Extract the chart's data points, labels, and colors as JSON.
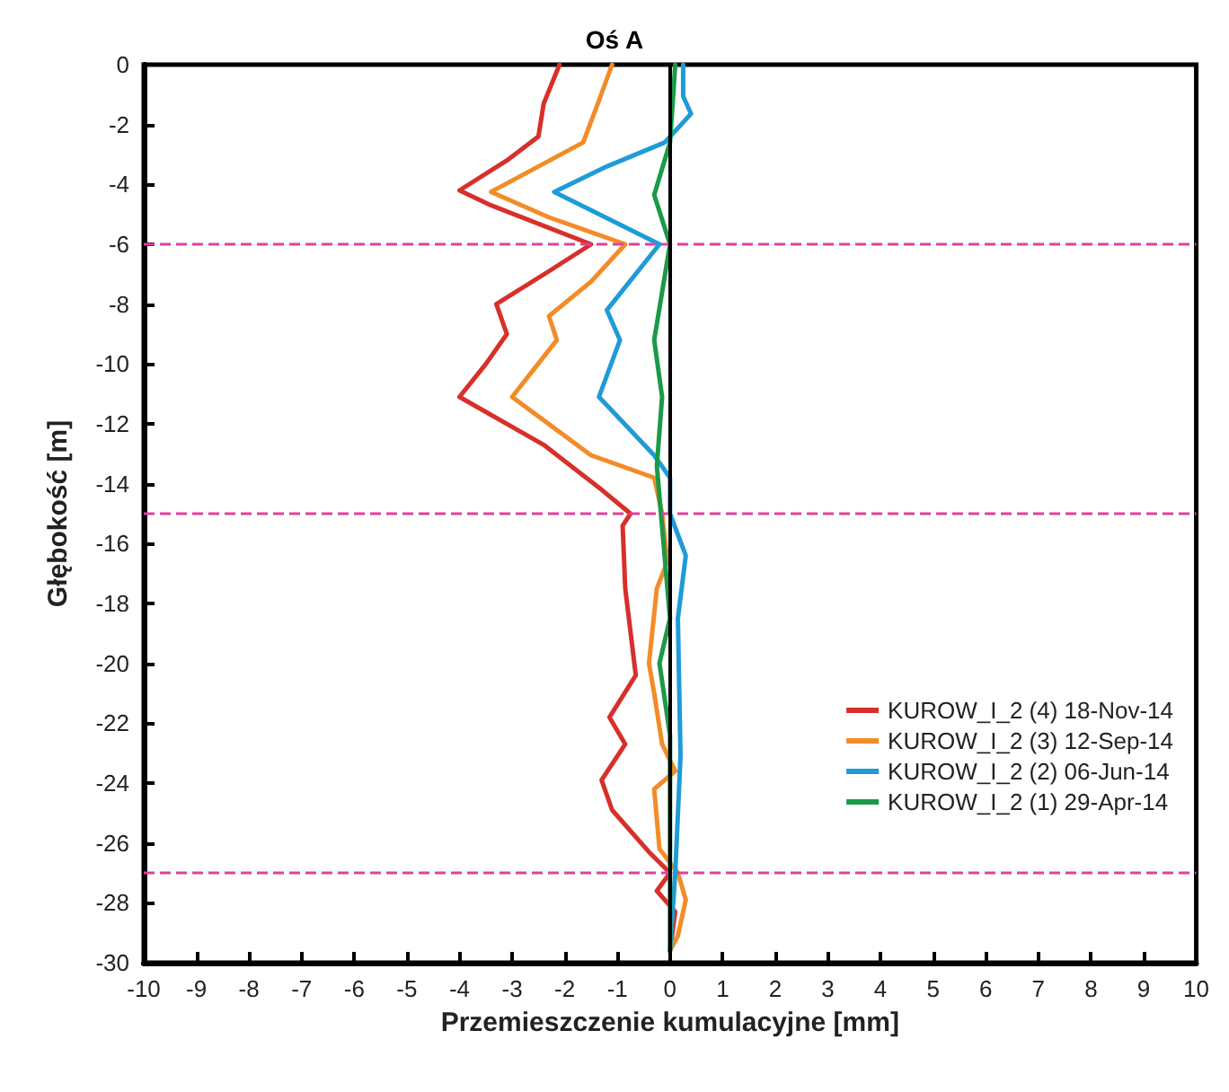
{
  "chart_data": {
    "type": "line",
    "title": "Oś A",
    "xlabel": "Przemieszczenie kumulacyjne [mm]",
    "ylabel": "Głębokość [m]",
    "xlim": [
      -10,
      10
    ],
    "xticks": [
      -10,
      -9,
      -8,
      -7,
      -6,
      -5,
      -4,
      -3,
      -2,
      -1,
      0,
      1,
      2,
      3,
      4,
      5,
      6,
      7,
      8,
      9,
      10
    ],
    "ylim": [
      -30,
      0
    ],
    "yticks": [
      -30,
      -28,
      -26,
      -24,
      -22,
      -20,
      -18,
      -16,
      -14,
      -12,
      -10,
      -8,
      -6,
      -4,
      -2,
      0
    ],
    "grid": false,
    "legend": "bottom right",
    "marker": "none",
    "line_style": "solid",
    "series": [
      {
        "name": "KUROW_I_2 (4) 18-Nov-14",
        "color": "#d7302a",
        "x": [
          -2.1,
          -2.4,
          -2.5,
          -3.1,
          -4.0,
          -3.4,
          -1.5,
          -2.3,
          -3.3,
          -3.1,
          -3.5,
          -4.0,
          -2.4,
          -1.3,
          -0.75,
          -0.9,
          -0.85,
          -0.65,
          -1.15,
          -0.85,
          -1.3,
          -1.1,
          -0.4,
          0,
          -0.25,
          0.1,
          0
        ],
        "values": [
          0,
          -1.3,
          -2.4,
          -3.2,
          -4.2,
          -4.7,
          -6,
          -6.9,
          -8,
          -9,
          -10,
          -11.1,
          -12.7,
          -14.2,
          -15,
          -15.4,
          -17.5,
          -20.4,
          -21.8,
          -22.7,
          -23.9,
          -24.9,
          -26.3,
          -27,
          -27.6,
          -28.3,
          -29.6
        ]
      },
      {
        "name": "KUROW_I_2 (3) 12-Sep-14",
        "color": "#f28c28",
        "x": [
          -1.1,
          -1.35,
          -1.65,
          -2.5,
          -3.4,
          -2.3,
          -0.85,
          -1.5,
          -2.3,
          -2.15,
          -3.0,
          -1.5,
          -0.3,
          -0.15,
          -0.05,
          -0.25,
          -0.4,
          -0.3,
          -0.15,
          0.1,
          -0.3,
          -0.2,
          0.15,
          0.3,
          0.15,
          0
        ],
        "values": [
          0,
          -1.2,
          -2.6,
          -3.4,
          -4.25,
          -5.1,
          -6,
          -7.25,
          -8.4,
          -9.2,
          -11.1,
          -13.05,
          -13.8,
          -15,
          -16.6,
          -17.5,
          -20,
          -21,
          -22.7,
          -23.6,
          -24.2,
          -26.2,
          -27,
          -27.9,
          -29.1,
          -29.6
        ]
      },
      {
        "name": "KUROW_I_2 (2) 06-Jun-14",
        "color": "#1f9bd7",
        "x": [
          0.25,
          0.25,
          0.4,
          -0.1,
          -1.2,
          -2.2,
          -0.2,
          -1.2,
          -0.95,
          -1.35,
          -0.3,
          0,
          0,
          0.3,
          0.15,
          0.2,
          0.1,
          0
        ],
        "values": [
          0,
          -1.06,
          -1.64,
          -2.6,
          -3.4,
          -4.25,
          -6,
          -8.2,
          -9.2,
          -11.1,
          -13.05,
          -13.8,
          -15,
          -16.4,
          -18.5,
          -23.1,
          -27,
          -29.6
        ]
      },
      {
        "name": "KUROW_I_2 (1) 29-Apr-14",
        "color": "#1a9a48",
        "x": [
          0.1,
          0,
          -0.3,
          0,
          -0.3,
          -0.15,
          -0.25,
          0,
          -0.2,
          0,
          0
        ],
        "values": [
          0,
          -2.6,
          -4.35,
          -6,
          -9.2,
          -11.1,
          -13.4,
          -18.5,
          -20,
          -22.4,
          -29.6
        ]
      }
    ],
    "ref_lines": [
      {
        "axis": "y",
        "value": -6,
        "color": "#e040a0",
        "line_style": "dashed"
      },
      {
        "axis": "y",
        "value": -15,
        "color": "#e040a0",
        "line_style": "dashed"
      },
      {
        "axis": "y",
        "value": -27,
        "color": "#e040a0",
        "line_style": "dashed"
      },
      {
        "axis": "x",
        "value": 0,
        "color": "#000000",
        "line_style": "solid"
      }
    ]
  }
}
